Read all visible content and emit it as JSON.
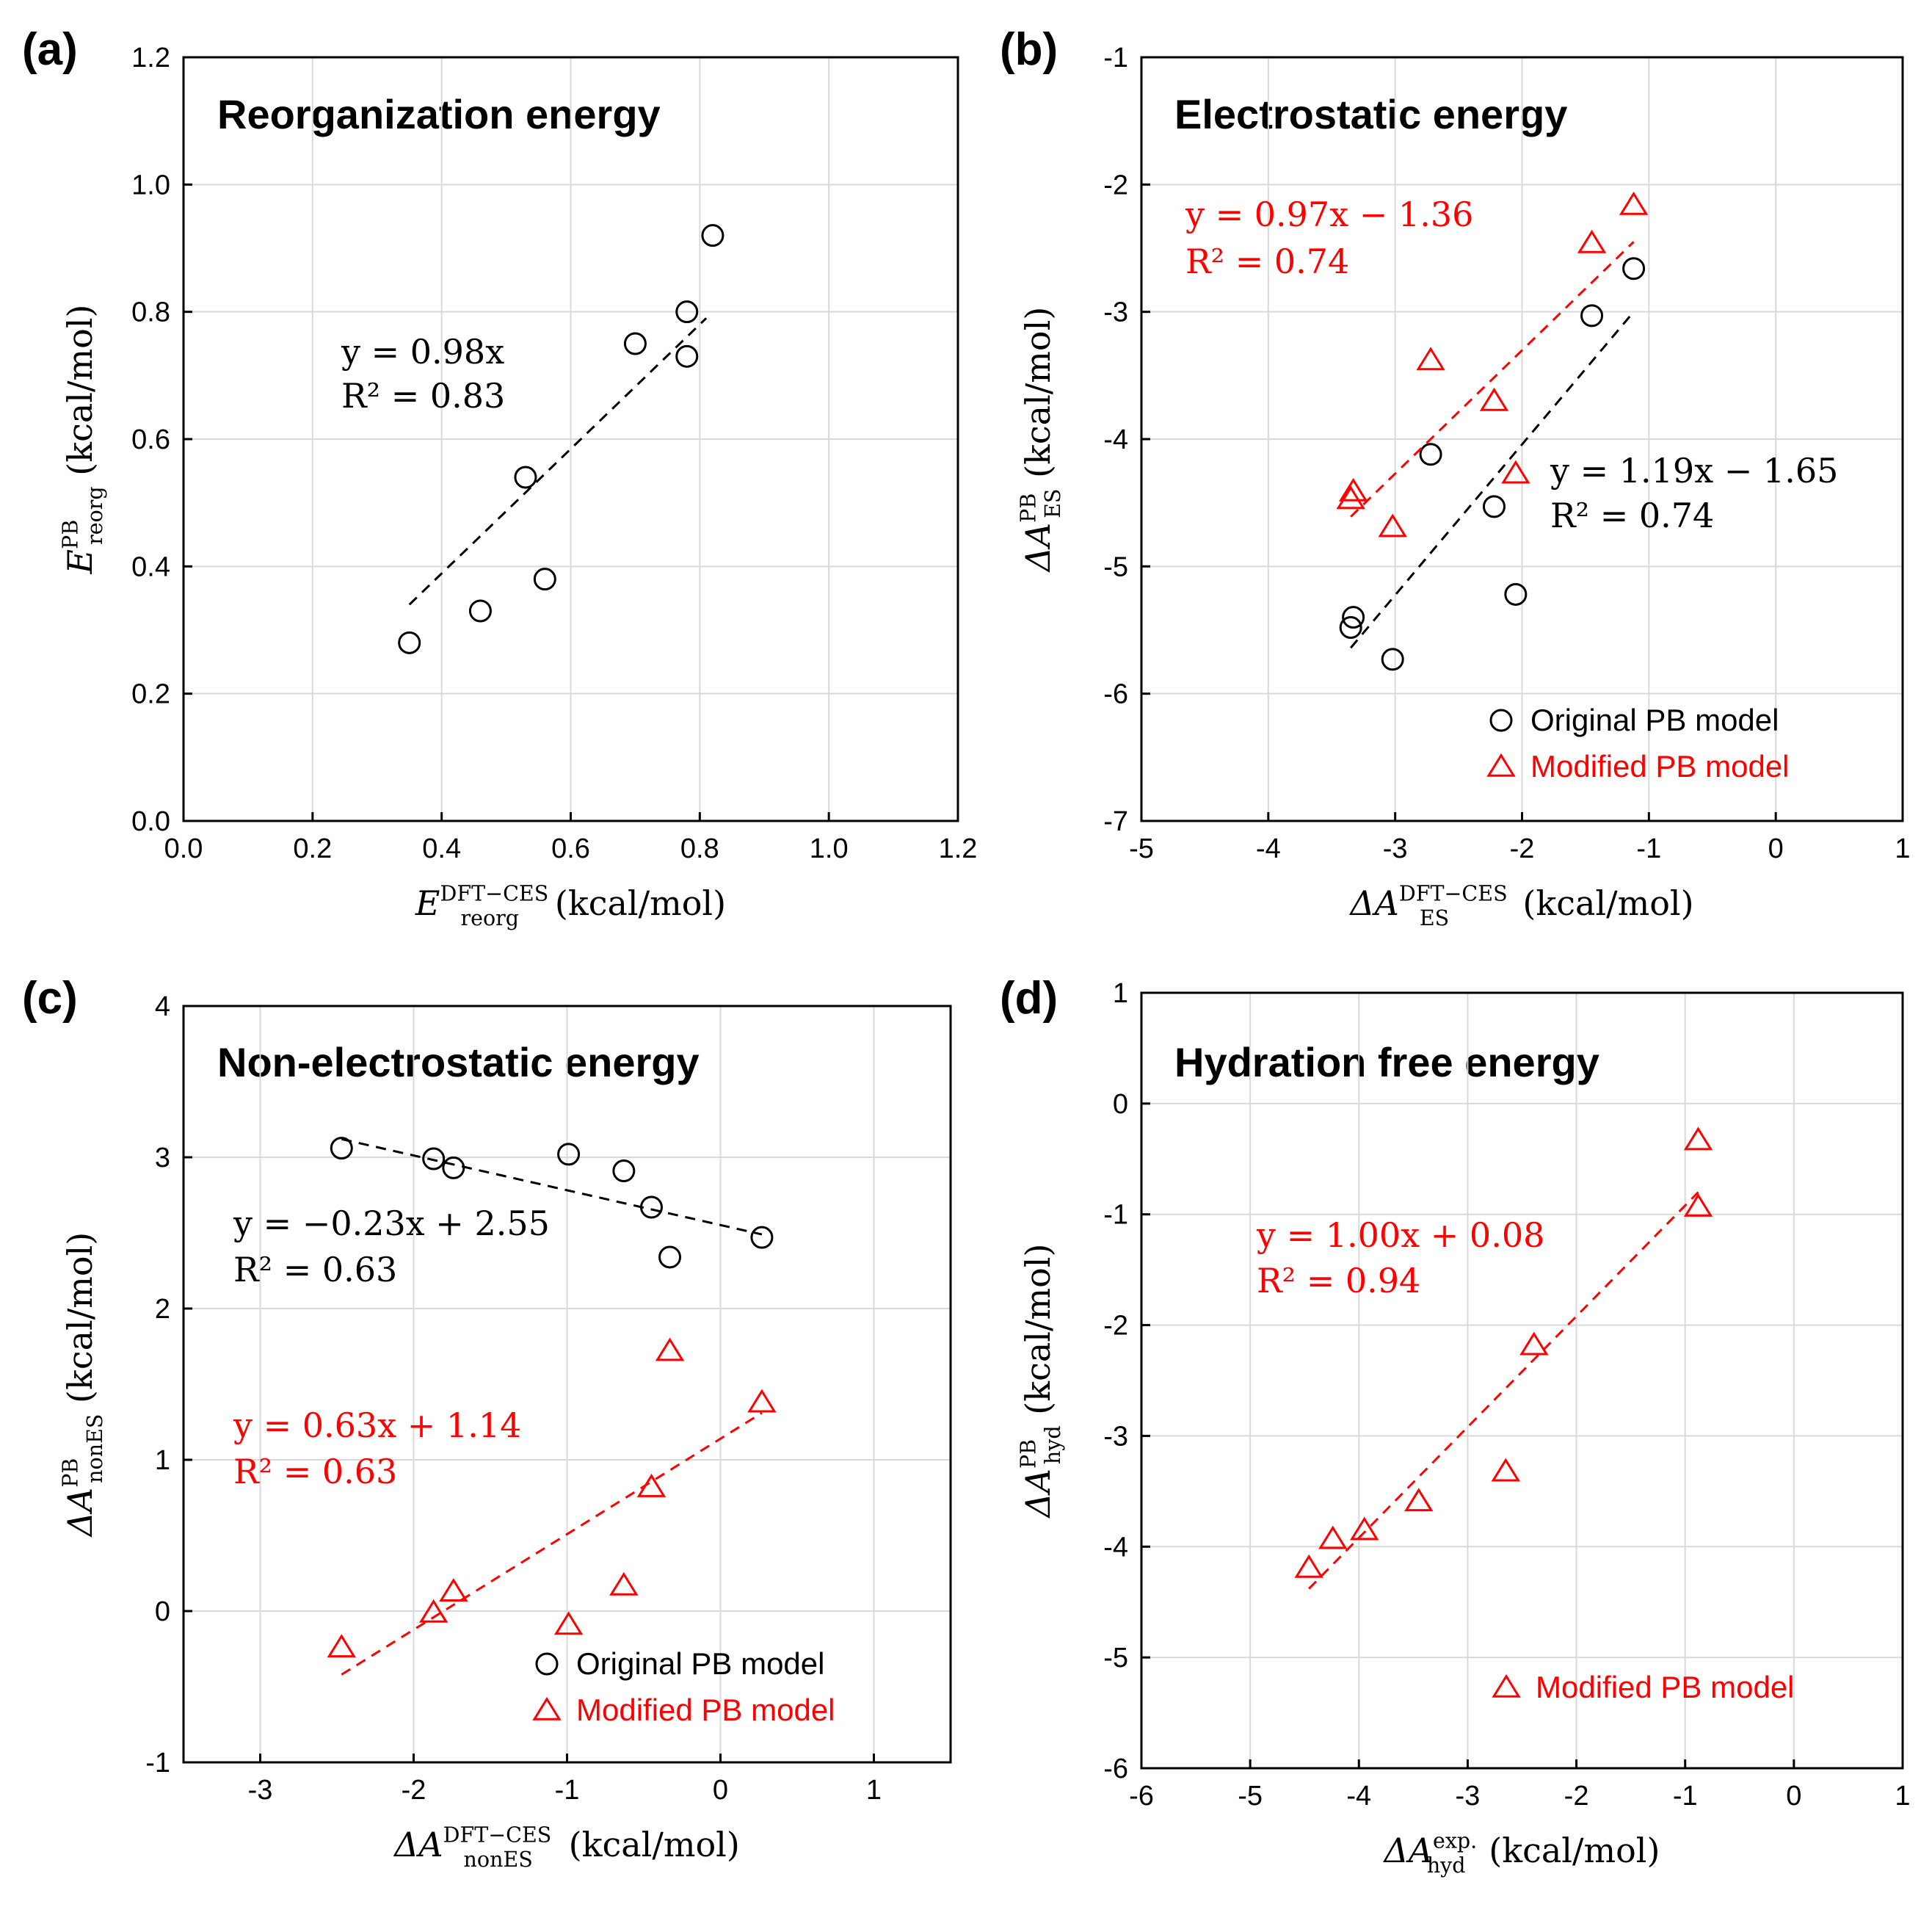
{
  "colors": {
    "original": "#000000",
    "modified": "#ff0000"
  },
  "chart_data": [
    {
      "panel_label": "(a)",
      "type": "scatter",
      "title": "Reorganization energy",
      "xlabel": {
        "sym": "E",
        "sup": "DFT−CES",
        "sub": "reorg",
        "unit": " (kcal/mol)"
      },
      "ylabel": {
        "sym": "E",
        "sup": "PB",
        "sub": "reorg",
        "unit": " (kcal/mol)"
      },
      "xlim": [
        0.0,
        1.2
      ],
      "ylim": [
        0.0,
        1.2
      ],
      "xticks": [
        0.0,
        0.2,
        0.4,
        0.6,
        0.8,
        1.0,
        1.2
      ],
      "yticks": [
        0.0,
        0.2,
        0.4,
        0.6,
        0.8,
        1.0,
        1.2
      ],
      "xtick_labels": [
        "0.0",
        "0.2",
        "0.4",
        "0.6",
        "0.8",
        "1.0",
        "1.2"
      ],
      "ytick_labels": [
        "0.0",
        "0.2",
        "0.4",
        "0.6",
        "0.8",
        "1.0",
        "1.2"
      ],
      "series": [
        {
          "name": "Original PB model",
          "marker": "circle",
          "color": "#000000",
          "x": [
            0.35,
            0.46,
            0.53,
            0.56,
            0.7,
            0.78,
            0.78,
            0.82
          ],
          "y": [
            0.28,
            0.33,
            0.54,
            0.38,
            0.75,
            0.73,
            0.8,
            0.92
          ],
          "fit": {
            "x": [
              0.35,
              0.81
            ],
            "y": [
              0.34,
              0.79
            ]
          },
          "equation": [
            "y = 0.98x",
            "R² = 0.83"
          ]
        }
      ],
      "legend": []
    },
    {
      "panel_label": "(b)",
      "type": "scatter",
      "title": "Electrostatic energy",
      "xlabel": {
        "sym": "ΔA",
        "sup": "DFT−CES",
        "sub": "ES",
        "unit": " (kcal/mol)"
      },
      "ylabel": {
        "sym": "ΔA",
        "sup": "PB",
        "sub": "ES",
        "unit": " (kcal/mol)"
      },
      "xlim": [
        -5,
        1
      ],
      "ylim": [
        -7,
        -1
      ],
      "xticks": [
        -5,
        -4,
        -3,
        -2,
        -1,
        0,
        1
      ],
      "yticks": [
        -7,
        -6,
        -5,
        -4,
        -3,
        -2,
        -1
      ],
      "xtick_labels": [
        "-5",
        "-4",
        "-3",
        "-2",
        "-1",
        "0",
        "1"
      ],
      "ytick_labels": [
        "-7",
        "-6",
        "-5",
        "-4",
        "-3",
        "-2",
        "-1"
      ],
      "series": [
        {
          "name": "Original PB model",
          "marker": "circle",
          "color": "#000000",
          "x": [
            -3.35,
            -3.33,
            -3.02,
            -2.72,
            -2.22,
            -2.05,
            -1.45,
            -1.12
          ],
          "y": [
            -5.48,
            -5.4,
            -5.73,
            -4.12,
            -4.53,
            -5.22,
            -3.03,
            -2.66
          ],
          "fit": {
            "x": [
              -3.35,
              -1.12
            ],
            "y": [
              -5.64,
              -3.0
            ]
          },
          "equation": [
            "y = 1.19x − 1.65",
            "R² = 0.74"
          ]
        },
        {
          "name": "Modified PB model",
          "marker": "triangle",
          "color": "#ff0000",
          "x": [
            -3.35,
            -3.33,
            -3.02,
            -2.72,
            -2.22,
            -2.05,
            -1.45,
            -1.12
          ],
          "y": [
            -4.47,
            -4.41,
            -4.69,
            -3.38,
            -3.7,
            -4.27,
            -2.46,
            -2.16
          ],
          "fit": {
            "x": [
              -3.35,
              -1.12
            ],
            "y": [
              -4.61,
              -2.45
            ]
          },
          "equation": [
            "y = 0.97x − 1.36",
            "R² = 0.74"
          ]
        }
      ],
      "legend": [
        "Original PB model",
        "Modified PB model"
      ]
    },
    {
      "panel_label": "(c)",
      "type": "scatter",
      "title": "Non-electrostatic energy",
      "xlabel": {
        "sym": "ΔA",
        "sup": "DFT−CES",
        "sub": "nonES",
        "unit": " (kcal/mol)"
      },
      "ylabel": {
        "sym": "ΔA",
        "sup": "PB",
        "sub": "nonES",
        "unit": " (kcal/mol)"
      },
      "xlim": [
        -3.5,
        1.5
      ],
      "ylim": [
        -1,
        4
      ],
      "xticks": [
        -3,
        -2,
        -1,
        0,
        1
      ],
      "yticks": [
        -1,
        0,
        1,
        2,
        3,
        4
      ],
      "xtick_labels": [
        "-3",
        "-2",
        "-1",
        "0",
        "1"
      ],
      "ytick_labels": [
        "-1",
        "0",
        "1",
        "2",
        "3",
        "4"
      ],
      "series": [
        {
          "name": "Original PB model",
          "marker": "circle",
          "color": "#000000",
          "x": [
            -2.47,
            -1.87,
            -1.74,
            -0.99,
            -0.63,
            -0.45,
            -0.33,
            0.27
          ],
          "y": [
            3.06,
            2.99,
            2.93,
            3.02,
            2.91,
            2.67,
            2.34,
            2.47
          ],
          "fit": {
            "x": [
              -2.47,
              0.27
            ],
            "y": [
              3.12,
              2.49
            ]
          },
          "equation": [
            "y = −0.23x + 2.55",
            "R² = 0.63"
          ]
        },
        {
          "name": "Modified PB model",
          "marker": "triangle",
          "color": "#ff0000",
          "x": [
            -2.47,
            -1.87,
            -1.74,
            -0.99,
            -0.63,
            -0.45,
            -0.33,
            0.27
          ],
          "y": [
            -0.24,
            -0.01,
            0.13,
            -0.09,
            0.17,
            0.82,
            1.72,
            1.38
          ],
          "fit": {
            "x": [
              -2.47,
              0.27
            ],
            "y": [
              -0.42,
              1.31
            ]
          },
          "equation": [
            "y = 0.63x + 1.14",
            "R² = 0.63"
          ]
        }
      ],
      "legend": [
        "Original PB model",
        "Modified PB model"
      ]
    },
    {
      "panel_label": "(d)",
      "type": "scatter",
      "title": "Hydration free energy",
      "xlabel": {
        "sym": "ΔA",
        "sup": "exp.",
        "sub": "hyd",
        "unit": " (kcal/mol)"
      },
      "ylabel": {
        "sym": "ΔA",
        "sup": "PB",
        "sub": "hyd",
        "unit": " (kcal/mol)"
      },
      "xlim": [
        -6,
        1
      ],
      "ylim": [
        -6,
        1
      ],
      "xticks": [
        -6,
        -5,
        -4,
        -3,
        -2,
        -1,
        0,
        1
      ],
      "yticks": [
        -6,
        -5,
        -4,
        -3,
        -2,
        -1,
        0,
        1
      ],
      "xtick_labels": [
        "-6",
        "-5",
        "-4",
        "-3",
        "-2",
        "-1",
        "0",
        "1"
      ],
      "ytick_labels": [
        "-6",
        "-5",
        "-4",
        "-3",
        "-2",
        "-1",
        "0",
        "1"
      ],
      "series": [
        {
          "name": "Modified PB model",
          "marker": "triangle",
          "color": "#ff0000",
          "x": [
            -4.46,
            -4.24,
            -3.95,
            -3.45,
            -2.65,
            -2.39,
            -0.88,
            -0.88
          ],
          "y": [
            -4.19,
            -3.93,
            -3.85,
            -3.59,
            -3.32,
            -2.18,
            -0.93,
            -0.33
          ],
          "fit": {
            "x": [
              -4.46,
              -0.88
            ],
            "y": [
              -4.38,
              -0.8
            ]
          },
          "equation": [
            "y = 1.00x + 0.08",
            "R² = 0.94"
          ]
        }
      ],
      "legend": [
        "Modified PB model"
      ]
    }
  ]
}
